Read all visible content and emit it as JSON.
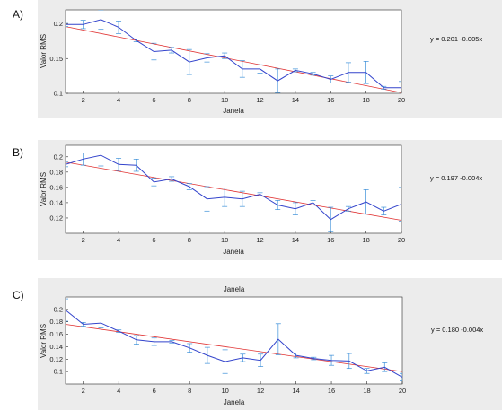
{
  "chart_data": [
    {
      "type": "line",
      "panel_label": "A)",
      "title": "",
      "xlabel": "Janela",
      "ylabel": "Valor RMS",
      "xlim": [
        1,
        20
      ],
      "ylim": [
        0.1,
        0.22
      ],
      "xticks": [
        2,
        4,
        6,
        8,
        10,
        12,
        14,
        16,
        18,
        20
      ],
      "yticks": [
        0.1,
        0.15,
        0.2
      ],
      "ytick_labels": [
        "0.1",
        "0.15",
        "0.2"
      ],
      "equation": "y = 0.201 -0.005x",
      "fit": {
        "intercept": 0.201,
        "slope": -0.005
      },
      "series": [
        {
          "x": [
            1,
            2,
            3,
            4,
            5,
            6,
            7,
            8,
            9,
            10,
            11,
            12,
            13,
            14,
            15,
            16,
            17,
            18,
            19,
            20
          ],
          "values": [
            0.199,
            0.199,
            0.206,
            0.195,
            0.176,
            0.16,
            0.162,
            0.145,
            0.151,
            0.154,
            0.135,
            0.135,
            0.118,
            0.133,
            0.128,
            0.12,
            0.13,
            0.13,
            0.108,
            0.108
          ],
          "err": [
            0.003,
            0.006,
            0.014,
            0.009,
            0.002,
            0.012,
            0.004,
            0.018,
            0.006,
            0.004,
            0.012,
            0.006,
            0.017,
            0.002,
            0.002,
            0.005,
            0.014,
            0.016,
            0.002,
            0.009
          ]
        }
      ]
    },
    {
      "type": "line",
      "panel_label": "B)",
      "title": "",
      "xlabel": "Janela",
      "ylabel": "Valor RMS",
      "xlim": [
        1,
        20
      ],
      "ylim": [
        0.1,
        0.215
      ],
      "xticks": [
        2,
        4,
        6,
        8,
        10,
        12,
        14,
        16,
        18,
        20
      ],
      "yticks": [
        0.12,
        0.14,
        0.16,
        0.18,
        0.2
      ],
      "ytick_labels": [
        "0.12",
        "0.14",
        "0.16",
        "0.18",
        "0.2"
      ],
      "equation": "y = 0.197 -0.004x",
      "fit": {
        "intercept": 0.197,
        "slope": -0.004
      },
      "series": [
        {
          "x": [
            1,
            2,
            3,
            4,
            5,
            6,
            7,
            8,
            9,
            10,
            11,
            12,
            13,
            14,
            15,
            16,
            17,
            18,
            19,
            20
          ],
          "values": [
            0.19,
            0.197,
            0.202,
            0.19,
            0.189,
            0.167,
            0.171,
            0.161,
            0.145,
            0.147,
            0.145,
            0.151,
            0.137,
            0.132,
            0.14,
            0.118,
            0.132,
            0.141,
            0.129,
            0.138
          ],
          "err": [
            0.003,
            0.008,
            0.014,
            0.008,
            0.008,
            0.005,
            0.003,
            0.004,
            0.016,
            0.012,
            0.01,
            0.002,
            0.006,
            0.008,
            0.003,
            0.016,
            0.003,
            0.016,
            0.005,
            0.022
          ]
        }
      ]
    },
    {
      "type": "line",
      "panel_label": "C)",
      "title": "Janela",
      "xlabel": "Janela",
      "ylabel": "Valor RMS",
      "xlim": [
        1,
        20
      ],
      "ylim": [
        0.08,
        0.22
      ],
      "xticks": [
        2,
        4,
        6,
        8,
        10,
        12,
        14,
        16,
        18,
        20
      ],
      "yticks": [
        0.1,
        0.12,
        0.14,
        0.16,
        0.18,
        0.2
      ],
      "ytick_labels": [
        "0.1",
        "0.12",
        "0.14",
        "0.16",
        "0.18",
        "0.2"
      ],
      "equation": "y = 0.180 -0.004x",
      "fit": {
        "intercept": 0.18,
        "slope": -0.004
      },
      "series": [
        {
          "x": [
            1,
            2,
            3,
            4,
            5,
            6,
            7,
            8,
            9,
            10,
            11,
            12,
            13,
            14,
            15,
            16,
            17,
            18,
            19,
            20
          ],
          "values": [
            0.199,
            0.176,
            0.178,
            0.165,
            0.151,
            0.148,
            0.148,
            0.138,
            0.126,
            0.116,
            0.122,
            0.118,
            0.152,
            0.126,
            0.121,
            0.118,
            0.117,
            0.101,
            0.107,
            0.091
          ],
          "err": [
            0.018,
            0.003,
            0.008,
            0.002,
            0.007,
            0.006,
            0.002,
            0.007,
            0.013,
            0.019,
            0.006,
            0.01,
            0.025,
            0.004,
            0.002,
            0.008,
            0.012,
            0.004,
            0.007,
            0.006
          ]
        }
      ]
    }
  ]
}
